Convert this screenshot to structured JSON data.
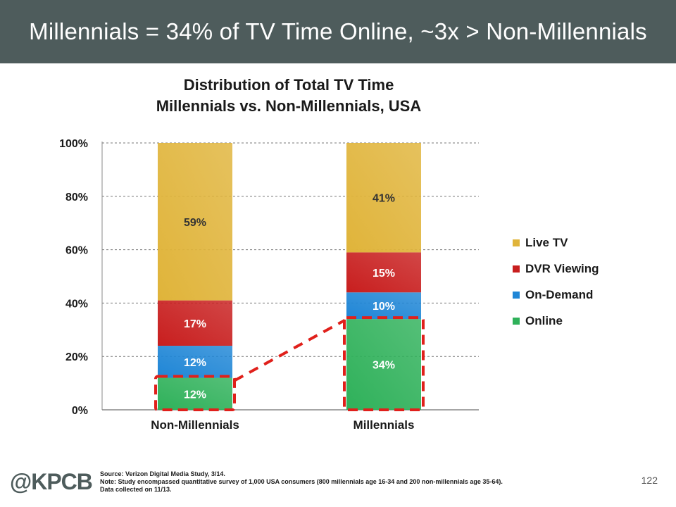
{
  "banner": {
    "text": "Millennials = 34% of TV Time Online, ~3x > Non-Millennials"
  },
  "chart_data": {
    "type": "bar",
    "stacked": true,
    "title": "Distribution of Total TV Time",
    "subtitle": "Millennials vs. Non-Millennials, USA",
    "xlabel": "",
    "ylabel": "",
    "ylim": [
      0,
      100
    ],
    "yticks": [
      "0%",
      "20%",
      "40%",
      "60%",
      "80%",
      "100%"
    ],
    "grid": true,
    "legend_position": "right",
    "categories": [
      "Non-Millennials",
      "Millennials"
    ],
    "series": [
      {
        "name": "Online",
        "values": [
          12,
          34
        ],
        "labels": [
          "12%",
          "34%"
        ],
        "color": "#2fb15a"
      },
      {
        "name": "On-Demand",
        "values": [
          12,
          10
        ],
        "labels": [
          "12%",
          "10%"
        ],
        "color": "#1f86d6"
      },
      {
        "name": "DVR Viewing",
        "values": [
          17,
          15
        ],
        "labels": [
          "17%",
          "15%"
        ],
        "color": "#c81e1e"
      },
      {
        "name": "Live TV",
        "values": [
          59,
          41
        ],
        "labels": [
          "59%",
          "41%"
        ],
        "color": "#e0b43a"
      }
    ],
    "legend_order": [
      "Live TV",
      "DVR Viewing",
      "On-Demand",
      "Online"
    ],
    "annotation": {
      "highlight_series": "Online",
      "style": "red dashed outline with dashed connector"
    }
  },
  "footer": {
    "logo": "@KPCB",
    "source": "Source: Verizon Digital Media Study, 3/14.",
    "note": "Note: Study encompassed quantitative survey of 1,000 USA consumers (800 millennials age 16-34 and 200 non-millennials age 35-64).",
    "data_collected": "Data collected on 11/13.",
    "page_number": "122"
  }
}
